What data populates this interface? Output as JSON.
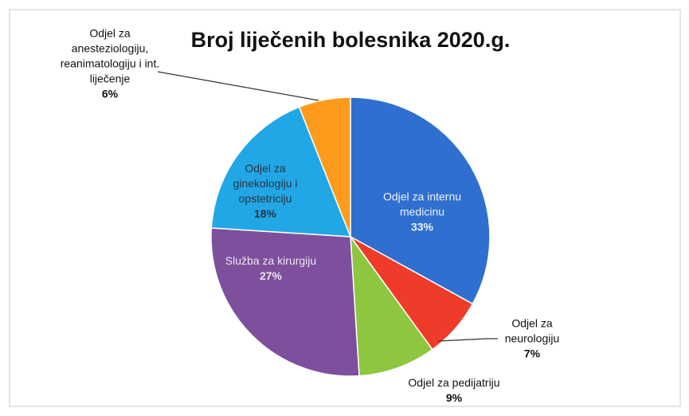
{
  "chart_data": {
    "type": "pie",
    "title": "Broj liječenih bolesnika 2020.g.",
    "categories": [
      "Odjel za internu medicinu",
      "Odjel za neurologiju",
      "Odjel za pedijatriju",
      "Služba za kirurgiju",
      "Odjel za ginekologiju i opstetriciju",
      "Odjel za anesteziologiju, reanimatologiju i int. liječenje"
    ],
    "values": [
      33,
      7,
      9,
      27,
      18,
      6
    ],
    "value_labels": [
      "33%",
      "7%",
      "9%",
      "27%",
      "18%",
      "6%"
    ],
    "colors": [
      "#2f6fcf",
      "#ef3b2a",
      "#8dc63f",
      "#7d4f9c",
      "#22a7e6",
      "#ff9b1c"
    ]
  }
}
